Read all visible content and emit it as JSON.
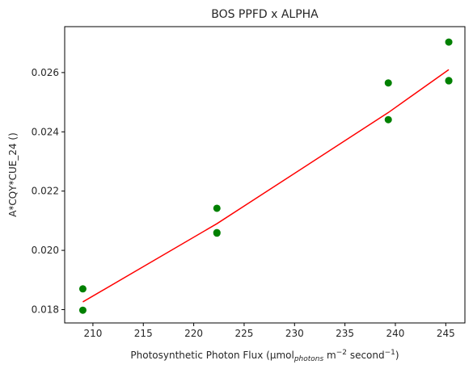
{
  "chart_data": {
    "type": "scatter",
    "title": "BOS PPFD x ALPHA",
    "xlabel": {
      "main": "Photosynthetic Photon Flux (μmol",
      "sub": "photons",
      "mid": " m",
      "sup1": "−2",
      "mid2": " second",
      "sup2": "−1",
      "end": ")"
    },
    "ylabel": "A*CQY*CUE_24 ()",
    "xlim": [
      207.2,
      246.9
    ],
    "ylim": [
      0.01755,
      0.02755
    ],
    "x_ticks": [
      210,
      215,
      220,
      225,
      230,
      235,
      240,
      245
    ],
    "y_ticks": [
      0.018,
      0.02,
      0.022,
      0.024,
      0.026
    ],
    "y_tick_labels": [
      "0.018",
      "0.020",
      "0.022",
      "0.024",
      "0.026"
    ],
    "grid": false,
    "series": [
      {
        "kind": "points",
        "color": "#008000",
        "points": [
          {
            "x": 209.0,
            "y": 0.0187
          },
          {
            "x": 209.0,
            "y": 0.01798
          },
          {
            "x": 222.3,
            "y": 0.02142
          },
          {
            "x": 222.3,
            "y": 0.02058
          },
          {
            "x": 222.3,
            "y": 0.0206
          },
          {
            "x": 239.3,
            "y": 0.02565
          },
          {
            "x": 239.3,
            "y": 0.02441
          },
          {
            "x": 245.3,
            "y": 0.02703
          },
          {
            "x": 245.3,
            "y": 0.02573
          },
          {
            "x": 245.3,
            "y": 0.02572
          }
        ]
      },
      {
        "kind": "line",
        "color": "#ff0000",
        "points": [
          {
            "x": 209.0,
            "y": 0.01826
          },
          {
            "x": 222.3,
            "y": 0.0209
          },
          {
            "x": 239.3,
            "y": 0.02465
          },
          {
            "x": 245.3,
            "y": 0.0261
          }
        ]
      }
    ]
  }
}
